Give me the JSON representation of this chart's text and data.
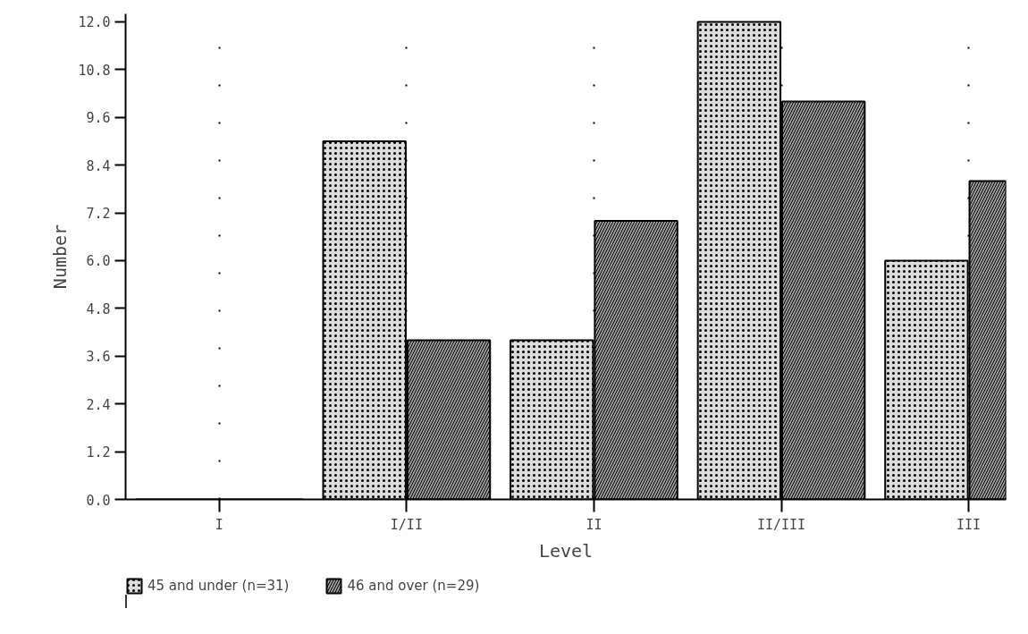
{
  "chart_data": {
    "type": "bar",
    "xlabel": "Level",
    "ylabel": "Number",
    "categories": [
      "I",
      "I/II",
      "II",
      "II/III",
      "III"
    ],
    "series": [
      {
        "name": "45 and under (n=31)",
        "color": "#dcdcdc",
        "values": [
          0,
          9,
          4,
          12,
          6
        ]
      },
      {
        "name": "46 and over (n=29)",
        "color": "#9a9a9a",
        "values": [
          0,
          4,
          7,
          10,
          8
        ]
      }
    ],
    "ylim": [
      0,
      12.2
    ],
    "yticks": [
      {
        "value": 0,
        "label": "0.0"
      },
      {
        "value": 1.2,
        "label": "1.2"
      },
      {
        "value": 2.4,
        "label": "2.4"
      },
      {
        "value": 3.6,
        "label": "3.6"
      },
      {
        "value": 4.8,
        "label": "4.8"
      },
      {
        "value": 6,
        "label": "6.0"
      },
      {
        "value": 7.2,
        "label": "7.2"
      },
      {
        "value": 8.4,
        "label": "8.4"
      },
      {
        "value": 9.6,
        "label": "9.6"
      },
      {
        "value": 10.8,
        "label": "10.8"
      },
      {
        "value": 12,
        "label": "12.0"
      }
    ],
    "grid": "x",
    "legend": "bottom left"
  }
}
